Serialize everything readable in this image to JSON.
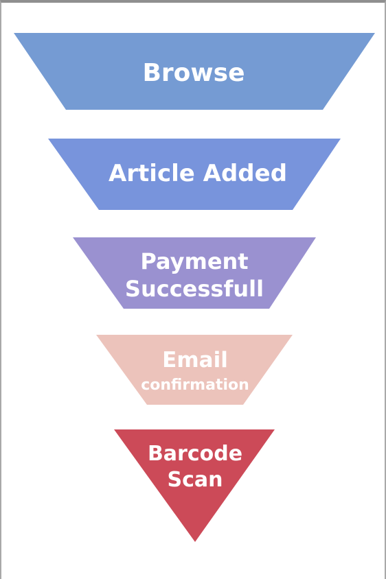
{
  "funnel": {
    "stages": [
      {
        "id": "browse",
        "lines": [
          "Browse"
        ],
        "color": "#759bd3"
      },
      {
        "id": "article-added",
        "lines": [
          "Article Added"
        ],
        "color": "#7894dc"
      },
      {
        "id": "payment-successful",
        "lines": [
          "Payment",
          "Successfull"
        ],
        "color": "#9a91d0"
      },
      {
        "id": "email-confirmation",
        "lines": [
          "Email",
          "confirmation"
        ],
        "color": "#ecc3bb"
      },
      {
        "id": "barcode-scan",
        "lines": [
          "Barcode",
          "Scan"
        ],
        "color": "#cc4a58"
      }
    ]
  }
}
